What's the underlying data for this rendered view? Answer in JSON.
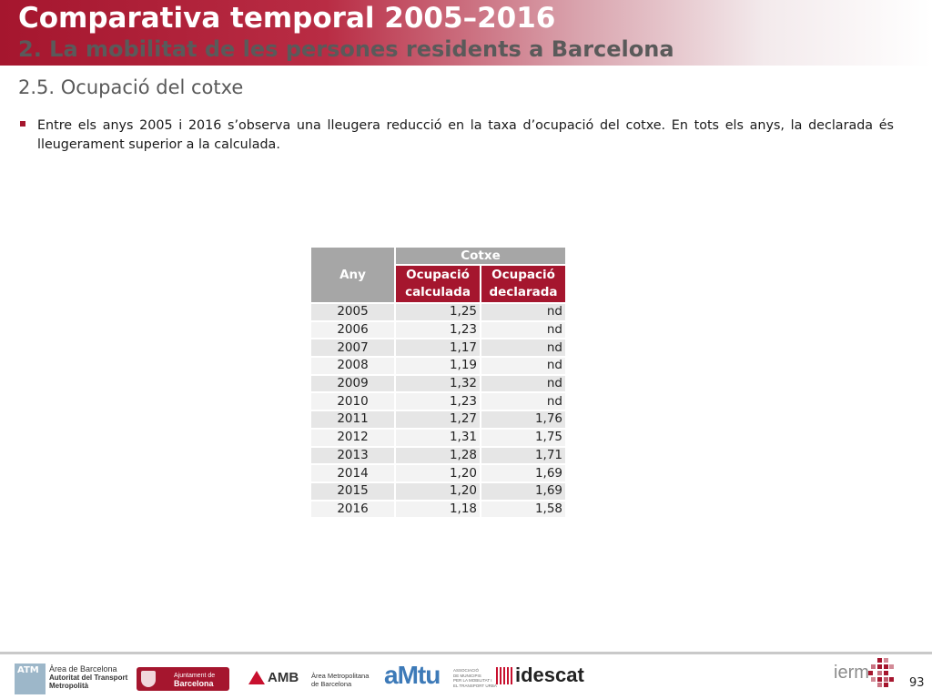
{
  "header": {
    "title": "Comparativa temporal 2005–2016",
    "subtitle": "2. La mobilitat de les persones residents a Barcelona"
  },
  "section": {
    "title": "2.5. Ocupació del cotxe"
  },
  "bullet": {
    "text": "Entre els anys 2005 i 2016 s’observa una lleugera reducció en la taxa d’ocupació del cotxe. En tots els anys, la declarada és lleugerament superior a la calculada."
  },
  "table": {
    "header_any": "Any",
    "header_group": "Cotxe",
    "col1_line1": "Ocupació",
    "col1_line2": "calculada",
    "col2_line1": "Ocupació",
    "col2_line2": "declarada",
    "rows": [
      {
        "year": "2005",
        "calculada": "1,25",
        "declarada": "nd"
      },
      {
        "year": "2006",
        "calculada": "1,23",
        "declarada": "nd"
      },
      {
        "year": "2007",
        "calculada": "1,17",
        "declarada": "nd"
      },
      {
        "year": "2008",
        "calculada": "1,19",
        "declarada": "nd"
      },
      {
        "year": "2009",
        "calculada": "1,32",
        "declarada": "nd"
      },
      {
        "year": "2010",
        "calculada": "1,23",
        "declarada": "nd"
      },
      {
        "year": "2011",
        "calculada": "1,27",
        "declarada": "1,76"
      },
      {
        "year": "2012",
        "calculada": "1,31",
        "declarada": "1,75"
      },
      {
        "year": "2013",
        "calculada": "1,28",
        "declarada": "1,71"
      },
      {
        "year": "2014",
        "calculada": "1,20",
        "declarada": "1,69"
      },
      {
        "year": "2015",
        "calculada": "1,20",
        "declarada": "1,69"
      },
      {
        "year": "2016",
        "calculada": "1,18",
        "declarada": "1,58"
      }
    ]
  },
  "footer": {
    "logos": {
      "atm_mark": "ATM",
      "atm_line1": "Àrea de Barcelona",
      "atm_line2": "Autoritat del Transport",
      "atm_line3": "Metropolità",
      "ajuntament_line1": "Ajuntament de",
      "ajuntament_line2": "Barcelona",
      "amb": "AMB",
      "amb_line1": "Àrea Metropolitana",
      "amb_line2": "de Barcelona",
      "amtu": "aMtu",
      "amtu_line1": "ASSOCIACIÓ",
      "amtu_line2": "DE MUNICIPIS",
      "amtu_line3": "PER LA MOBILITAT I",
      "amtu_line4": "EL TRANSPORT URBÀ",
      "idescat": "idescat",
      "ierm": "ierm"
    },
    "page_number": "93"
  },
  "colors": {
    "brand_red": "#a5162e",
    "header_grey": "#a6a6a6",
    "row_odd": "#e6e6e6",
    "row_even": "#f3f3f3"
  }
}
